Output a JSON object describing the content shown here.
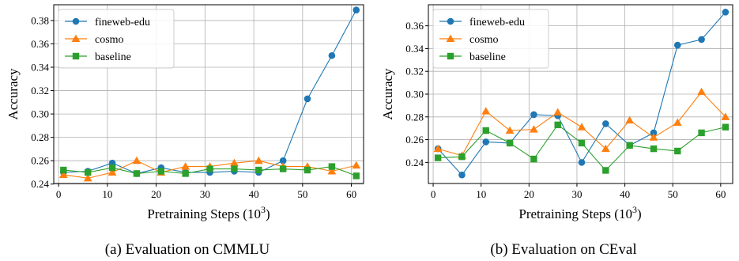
{
  "colors": {
    "fineweb-edu": "#1f77b4",
    "cosmo": "#ff7f0e",
    "baseline": "#2ca02c",
    "grid": "#b0b0b0"
  },
  "chart_data": [
    {
      "type": "line",
      "caption": "(a) Evaluation on CMMLU",
      "xlabel_text": "Pretraining Steps (",
      "xlabel_base": "10",
      "xlabel_exp": "3",
      "xlabel_close": ")",
      "ylabel": "Accuracy",
      "xlim": [
        -1,
        62.5
      ],
      "ylim": [
        0.2405,
        0.3935
      ],
      "xticks": [
        0,
        10,
        20,
        30,
        40,
        50,
        60
      ],
      "yticks": [
        0.24,
        0.26,
        0.28,
        0.3,
        0.32,
        0.34,
        0.36,
        0.38
      ],
      "ytick_labels": [
        "0.24",
        "0.26",
        "0.28",
        "0.30",
        "0.32",
        "0.34",
        "0.36",
        "0.38"
      ],
      "grid": true,
      "legend": "top-left",
      "x": [
        1,
        6,
        11,
        16,
        21,
        26,
        31,
        36,
        41,
        46,
        51,
        56,
        61
      ],
      "series": [
        {
          "name": "fineweb-edu",
          "marker": "circle",
          "values": [
            0.25,
            0.251,
            0.258,
            0.249,
            0.254,
            0.25,
            0.25,
            0.251,
            0.25,
            0.26,
            0.313,
            0.35,
            0.389
          ]
        },
        {
          "name": "cosmo",
          "marker": "triangle",
          "values": [
            0.248,
            0.245,
            0.25,
            0.26,
            0.25,
            0.255,
            0.255,
            0.258,
            0.26,
            0.255,
            0.255,
            0.251,
            0.256
          ]
        },
        {
          "name": "baseline",
          "marker": "square",
          "values": [
            0.252,
            0.25,
            0.254,
            0.249,
            0.251,
            0.249,
            0.253,
            0.253,
            0.252,
            0.253,
            0.252,
            0.255,
            0.247
          ]
        }
      ]
    },
    {
      "type": "line",
      "caption": "(b) Evaluation on CEval",
      "xlabel_text": "Pretraining Steps (",
      "xlabel_base": "10",
      "xlabel_exp": "3",
      "xlabel_close": ")",
      "ylabel": "Accuracy",
      "xlim": [
        -1,
        62.5
      ],
      "ylim": [
        0.2215,
        0.3785
      ],
      "xticks": [
        0,
        10,
        20,
        30,
        40,
        50,
        60
      ],
      "yticks": [
        0.24,
        0.26,
        0.28,
        0.3,
        0.32,
        0.34,
        0.36
      ],
      "ytick_labels": [
        "0.24",
        "0.26",
        "0.28",
        "0.30",
        "0.32",
        "0.34",
        "0.36"
      ],
      "grid": true,
      "legend": "top-left",
      "x": [
        1,
        6,
        11,
        16,
        21,
        26,
        31,
        36,
        41,
        46,
        51,
        56,
        61
      ],
      "series": [
        {
          "name": "fineweb-edu",
          "marker": "circle",
          "values": [
            0.252,
            0.229,
            0.258,
            0.257,
            0.282,
            0.281,
            0.24,
            0.274,
            0.255,
            0.266,
            0.343,
            0.348,
            0.372
          ]
        },
        {
          "name": "cosmo",
          "marker": "triangle",
          "values": [
            0.252,
            0.246,
            0.285,
            0.268,
            0.269,
            0.284,
            0.271,
            0.252,
            0.277,
            0.262,
            0.275,
            0.302,
            0.28
          ]
        },
        {
          "name": "baseline",
          "marker": "square",
          "values": [
            0.244,
            0.245,
            0.268,
            0.257,
            0.243,
            0.273,
            0.257,
            0.233,
            0.255,
            0.252,
            0.25,
            0.266,
            0.271
          ]
        }
      ]
    }
  ]
}
